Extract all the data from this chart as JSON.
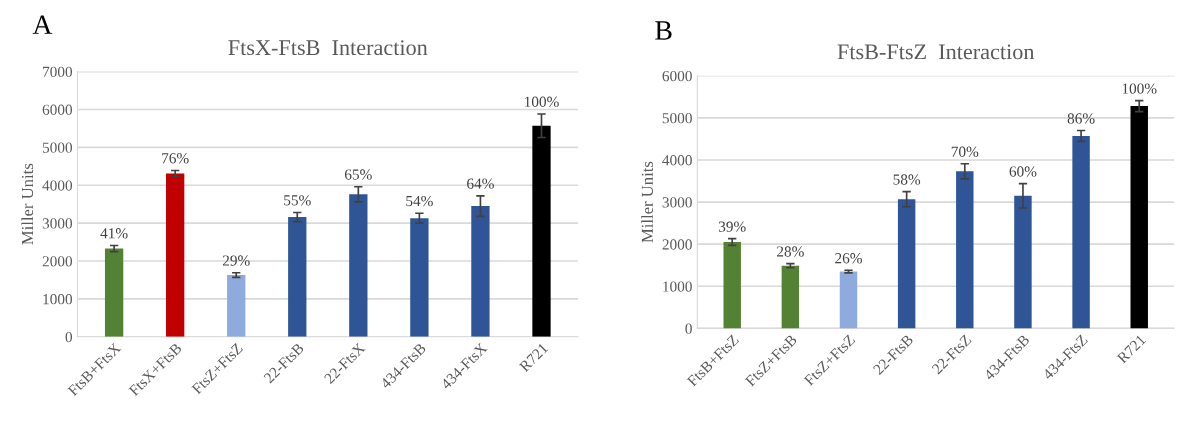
{
  "chart_data": [
    {
      "type": "bar",
      "title": "FtsX-FtsB  Interaction",
      "ylabel": "Miller Units",
      "annotations": [
        "A",
        {
          "text": "41%",
          "x": "FtsB+FtsX",
          "y": 2330
        },
        {
          "text": "76%",
          "x": "FtsX+FtsB",
          "y": 4310
        },
        {
          "text": "29%",
          "x": "FtsZ+FtsZ",
          "y": 1630
        },
        {
          "text": "55%",
          "x": "22-FtsB",
          "y": 3160
        },
        {
          "text": "65%",
          "x": "22-FtsX",
          "y": 3760
        },
        {
          "text": "54%",
          "x": "434-FtsB",
          "y": 3130
        },
        {
          "text": "64%",
          "x": "434-FtsX",
          "y": 3450
        },
        {
          "text": "100%",
          "x": "R721",
          "y": 5570
        }
      ],
      "categories": [
        "FtsB+FtsX",
        "FtsX+FtsB",
        "FtsZ+FtsZ",
        "22-FtsB",
        "22-FtsX",
        "434-FtsB",
        "434-FtsX",
        "R721"
      ],
      "values": [
        2330,
        4310,
        1630,
        3160,
        3760,
        3130,
        3450,
        5570
      ],
      "errors": [
        80,
        80,
        60,
        120,
        200,
        130,
        270,
        310
      ],
      "colors": [
        "#548235",
        "#c00000",
        "#8faadc",
        "#2f5597",
        "#2f5597",
        "#2f5597",
        "#2f5597",
        "#000000"
      ],
      "ylim": [
        0,
        7000
      ],
      "yticks": [
        0,
        1000,
        2000,
        3000,
        4000,
        5000,
        6000,
        7000
      ],
      "grid": "y"
    },
    {
      "type": "bar",
      "title": "FtsB-FtsZ  Interaction",
      "ylabel": "Miller Units",
      "annotations": [
        "B",
        {
          "text": "39%",
          "x": "FtsB+FtsZ",
          "y": 2050
        },
        {
          "text": "28%",
          "x": "FtsZ+FtsB",
          "y": 1490
        },
        {
          "text": "26%",
          "x": "FtsZ+FtsZ",
          "y": 1350
        },
        {
          "text": "58%",
          "x": "22-FtsB",
          "y": 3070
        },
        {
          "text": "70%",
          "x": "22-FtsZ",
          "y": 3730
        },
        {
          "text": "60%",
          "x": "434-FtsB",
          "y": 3150
        },
        {
          "text": "86%",
          "x": "434-FtsZ",
          "y": 4570
        },
        {
          "text": "100%",
          "x": "R721",
          "y": 5280
        }
      ],
      "categories": [
        "FtsB+FtsZ",
        "FtsZ+FtsB",
        "FtsZ+FtsZ",
        "22-FtsB",
        "22-FtsZ",
        "434-FtsB",
        "434-FtsZ",
        "R721"
      ],
      "values": [
        2050,
        1490,
        1350,
        3070,
        3730,
        3150,
        4570,
        5280
      ],
      "errors": [
        80,
        50,
        30,
        180,
        180,
        290,
        130,
        130
      ],
      "colors": [
        "#548235",
        "#548235",
        "#8faadc",
        "#2f5597",
        "#2f5597",
        "#2f5597",
        "#2f5597",
        "#000000"
      ],
      "ylim": [
        0,
        6000
      ],
      "yticks": [
        0,
        1000,
        2000,
        3000,
        4000,
        5000,
        6000
      ],
      "grid": "y"
    }
  ]
}
